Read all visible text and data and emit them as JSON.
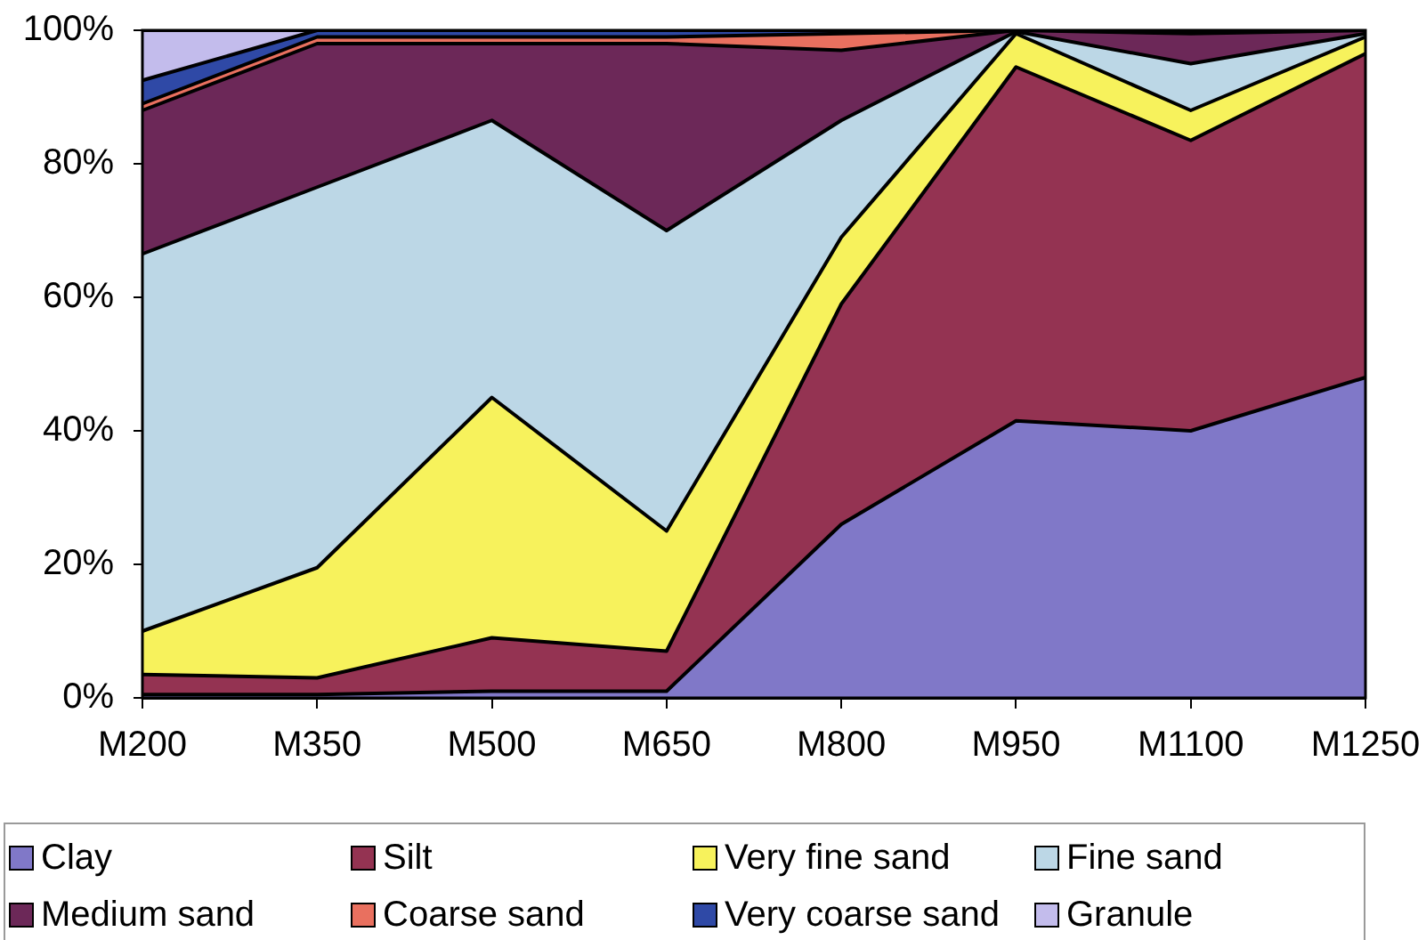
{
  "chart_data": {
    "type": "area",
    "stacked": true,
    "categories": [
      "M200",
      "M350",
      "M500",
      "M650",
      "M800",
      "M950",
      "M1100",
      "M1250"
    ],
    "series": [
      {
        "name": "Clay",
        "color": "#8078c8",
        "values": [
          0.5,
          0.5,
          1,
          1,
          26,
          41.5,
          40,
          48
        ]
      },
      {
        "name": "Silt",
        "color": "#943352",
        "values": [
          3,
          2.5,
          8,
          6,
          33,
          53,
          43.5,
          48.5
        ]
      },
      {
        "name": "Very fine sand",
        "color": "#f7f25c",
        "values": [
          6.5,
          16.5,
          36,
          18,
          10,
          5,
          4.5,
          2.5
        ]
      },
      {
        "name": "Fine sand",
        "color": "#bcd7e6",
        "values": [
          56.5,
          57,
          41.5,
          45,
          17.5,
          0.3,
          7,
          0.5
        ]
      },
      {
        "name": "Medium sand",
        "color": "#6c2858",
        "values": [
          21.5,
          21.5,
          11.5,
          28,
          10.5,
          0.2,
          4.5,
          0.5
        ]
      },
      {
        "name": "Coarse sand",
        "color": "#e9705f",
        "values": [
          1,
          1,
          1,
          1,
          2.5,
          0,
          0.5,
          0
        ]
      },
      {
        "name": "Very coarse sand",
        "color": "#2f49a6",
        "values": [
          3.5,
          1,
          1,
          1,
          0.5,
          0,
          0,
          0
        ]
      },
      {
        "name": "Granule",
        "color": "#c3bcec",
        "values": [
          7.5,
          0,
          0,
          0,
          0,
          0,
          0,
          0
        ]
      }
    ],
    "ylim": [
      0,
      100
    ],
    "yticks": [
      {
        "value": 0,
        "label": "0%"
      },
      {
        "value": 20,
        "label": "20%"
      },
      {
        "value": 40,
        "label": "40%"
      },
      {
        "value": 60,
        "label": "60%"
      },
      {
        "value": 80,
        "label": "80%"
      },
      {
        "value": 100,
        "label": "100%"
      }
    ],
    "legend": "bottom"
  }
}
